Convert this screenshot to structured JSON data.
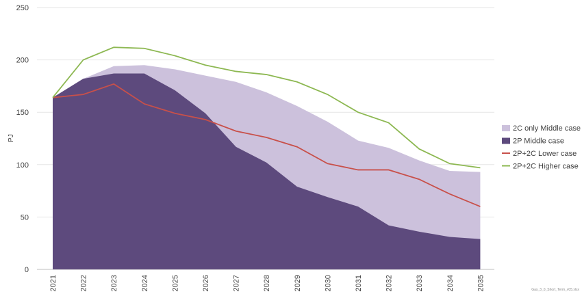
{
  "chart_data": {
    "type": "area",
    "title": "",
    "xlabel": "",
    "ylabel": "PJ",
    "ylim": [
      0,
      250
    ],
    "yticks": [
      0,
      50,
      100,
      150,
      200,
      250
    ],
    "grid": "horizontal",
    "legend_position": "right",
    "x": [
      "2021",
      "2022",
      "2023",
      "2024",
      "2025",
      "2026",
      "2027",
      "2028",
      "2029",
      "2030",
      "2031",
      "2032",
      "2033",
      "2034",
      "2035"
    ],
    "series": [
      {
        "name": "2C only Middle case",
        "kind": "area",
        "color": "#ccc1dc",
        "values": [
          164,
          182,
          194,
          195,
          191,
          185,
          179,
          169,
          156,
          141,
          123,
          116,
          104,
          94,
          93
        ]
      },
      {
        "name": "2P Middle case",
        "kind": "area",
        "color": "#5d4a7d",
        "values": [
          164,
          182,
          187,
          187,
          171,
          149,
          117,
          102,
          79,
          69,
          60,
          42,
          36,
          31,
          29
        ]
      },
      {
        "name": "2P+2C Lower case",
        "kind": "line",
        "color": "#c8504a",
        "values": [
          164,
          167,
          177,
          158,
          149,
          143,
          132,
          126,
          117,
          101,
          95,
          95,
          86,
          72,
          60
        ]
      },
      {
        "name": "2P+2C Higher case",
        "kind": "line",
        "color": "#8db852",
        "values": [
          164,
          200,
          212,
          211,
          204,
          195,
          189,
          186,
          179,
          167,
          150,
          140,
          115,
          101,
          97
        ]
      }
    ]
  },
  "footnote": "Gas_3_0_Short_Term_v05.xlsx"
}
